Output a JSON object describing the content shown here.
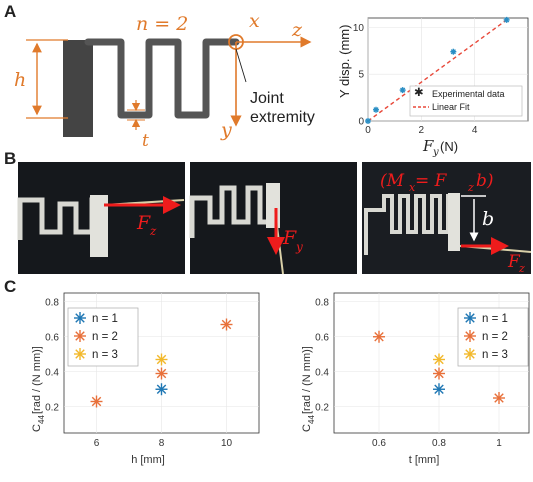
{
  "panels": {
    "a": {
      "letter": "A",
      "n_label": "n = 2",
      "x_label": "x",
      "z_label": "z",
      "y_label": "y",
      "h_label": "h",
      "t_label": "t",
      "joint_label_line1": "Joint",
      "joint_label_line2": "extremity"
    },
    "b": {
      "letter": "B",
      "fz_label": "F",
      "fz_sub": "z",
      "fy_label": "F",
      "fy_sub": "y",
      "moment_label": "(M",
      "moment_sub": "x",
      "moment_rest": " = F",
      "moment_sub2": "z",
      "moment_end": "b)",
      "b_label": "b",
      "fz2_label": "F",
      "fz2_sub": "z"
    },
    "c": {
      "letter": "C"
    }
  },
  "colors": {
    "orange": "#e07a2b",
    "blue": "#1f77b4",
    "red": "#e8493a",
    "yellow": "#f2b82b",
    "photo_bg": "#15181c",
    "spring_gray": "#555555",
    "base_dark": "#444444"
  },
  "chart_data": [
    {
      "type": "scatter",
      "xlabel": "F",
      "xlabel_sub": "y",
      "xlabel_unit": " (N)",
      "ylabel": "Y disp. (mm)",
      "xlim": [
        0,
        6
      ],
      "ylim": [
        0,
        11
      ],
      "xticks": [
        "0",
        "2",
        "4"
      ],
      "xtick_values": [
        0,
        2,
        4
      ],
      "yticks": [
        "0",
        "5",
        "10"
      ],
      "ytick_values": [
        0,
        5,
        10
      ],
      "series": [
        {
          "name": "Experimental data",
          "x": [
            0,
            0.3,
            1.3,
            3.2,
            5.2
          ],
          "y": [
            0,
            1.2,
            3.3,
            7.4,
            10.8
          ]
        },
        {
          "name": "Linear Fit",
          "line": [
            [
              0,
              0
            ],
            [
              5.2,
              10.8
            ]
          ]
        }
      ]
    },
    {
      "type": "scatter",
      "xlabel": "h [mm]",
      "ylabel": "C",
      "ylabel_sub": "44",
      "ylabel_unit": " [rad / (N mm)]",
      "xlim": [
        5,
        11
      ],
      "ylim": [
        0.05,
        0.85
      ],
      "xticks": [
        "6",
        "8",
        "10"
      ],
      "xtick_values": [
        6,
        8,
        10
      ],
      "yticks": [
        "0.2",
        "0.4",
        "0.6",
        "0.8"
      ],
      "ytick_values": [
        0.2,
        0.4,
        0.6,
        0.8
      ],
      "legend_position": "top-left",
      "series": [
        {
          "name": "n = 1",
          "x": [
            8
          ],
          "y": [
            0.3
          ]
        },
        {
          "name": "n = 2",
          "x": [
            6,
            8,
            10
          ],
          "y": [
            0.23,
            0.39,
            0.67
          ]
        },
        {
          "name": "n = 3",
          "x": [
            8
          ],
          "y": [
            0.47
          ]
        }
      ]
    },
    {
      "type": "scatter",
      "xlabel": "t [mm]",
      "ylabel": "C",
      "ylabel_sub": "44",
      "ylabel_unit": " [rad / (N mm)]",
      "xlim": [
        0.45,
        1.1
      ],
      "ylim": [
        0.05,
        0.85
      ],
      "xticks": [
        "0.6",
        "0.8",
        "1"
      ],
      "xtick_values": [
        0.6,
        0.8,
        1.0
      ],
      "yticks": [
        "0.2",
        "0.4",
        "0.6",
        "0.8"
      ],
      "ytick_values": [
        0.2,
        0.4,
        0.6,
        0.8
      ],
      "legend_position": "top-right",
      "series": [
        {
          "name": "n = 1",
          "x": [
            0.8
          ],
          "y": [
            0.3
          ]
        },
        {
          "name": "n = 2",
          "x": [
            0.6,
            0.8,
            1.0
          ],
          "y": [
            0.6,
            0.39,
            0.25
          ]
        },
        {
          "name": "n = 3",
          "x": [
            0.8
          ],
          "y": [
            0.47
          ]
        }
      ]
    }
  ]
}
